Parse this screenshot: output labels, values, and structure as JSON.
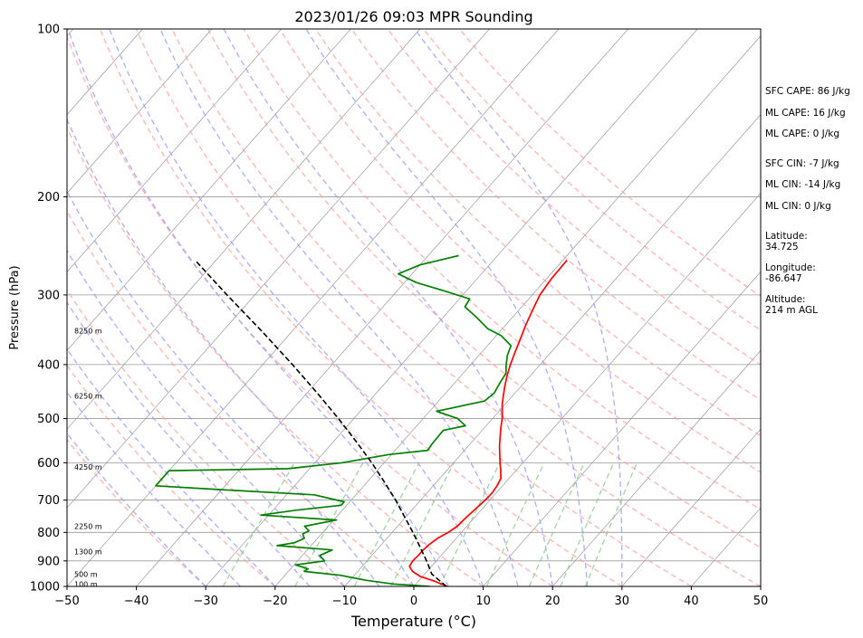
{
  "chart_data": {
    "type": "line",
    "title": "2023/01/26 09:03 MPR Sounding",
    "xlabel": "Temperature (°C)",
    "ylabel": "Pressure (hPa)",
    "xlim": [
      -50,
      50
    ],
    "ylim": [
      1000,
      100
    ],
    "y_scale": "log",
    "x_ticks": [
      -50,
      -40,
      -30,
      -20,
      -10,
      0,
      10,
      20,
      30,
      40,
      50
    ],
    "y_ticks": [
      100,
      200,
      300,
      400,
      500,
      600,
      700,
      800,
      900,
      1000
    ],
    "grid": true,
    "series": [
      {
        "role": "temperature",
        "color": "#ff0000",
        "points": [
          [
            1000,
            4.8
          ],
          [
            980,
            2.5
          ],
          [
            960,
            -0.3
          ],
          [
            940,
            -2.1
          ],
          [
            920,
            -3.2
          ],
          [
            900,
            -3.4
          ],
          [
            880,
            -3.3
          ],
          [
            860,
            -3.3
          ],
          [
            840,
            -3.1
          ],
          [
            820,
            -2.7
          ],
          [
            800,
            -1.9
          ],
          [
            780,
            -1.4
          ],
          [
            750,
            -1.2
          ],
          [
            720,
            -0.9
          ],
          [
            700,
            -0.7
          ],
          [
            680,
            -0.6
          ],
          [
            660,
            -0.8
          ],
          [
            640,
            -1.2
          ],
          [
            620,
            -2.2
          ],
          [
            600,
            -3.3
          ],
          [
            560,
            -5.5
          ],
          [
            520,
            -7.6
          ],
          [
            500,
            -8.6
          ],
          [
            470,
            -10.5
          ],
          [
            440,
            -12.2
          ],
          [
            420,
            -13.3
          ],
          [
            400,
            -14.3
          ],
          [
            380,
            -15.2
          ],
          [
            360,
            -16.1
          ],
          [
            340,
            -17.1
          ],
          [
            320,
            -18.0
          ],
          [
            300,
            -18.9
          ],
          [
            280,
            -19.3
          ],
          [
            260,
            -19.4
          ]
        ]
      },
      {
        "role": "dewpoint",
        "color": "#008000",
        "points": [
          [
            1000,
            2.3
          ],
          [
            990,
            -3.3
          ],
          [
            975,
            -7.7
          ],
          [
            955,
            -12.0
          ],
          [
            940,
            -17.7
          ],
          [
            930,
            -17.5
          ],
          [
            915,
            -19.8
          ],
          [
            900,
            -16.1
          ],
          [
            880,
            -17.5
          ],
          [
            860,
            -16.4
          ],
          [
            845,
            -24.9
          ],
          [
            835,
            -22.8
          ],
          [
            820,
            -21.9
          ],
          [
            805,
            -22.7
          ],
          [
            795,
            -22.2
          ],
          [
            780,
            -23.4
          ],
          [
            760,
            -19.6
          ],
          [
            745,
            -31.1
          ],
          [
            730,
            -26.7
          ],
          [
            715,
            -20.8
          ],
          [
            705,
            -20.8
          ],
          [
            685,
            -26.0
          ],
          [
            670,
            -40.6
          ],
          [
            660,
            -50.0
          ],
          [
            620,
            -50.0
          ],
          [
            615,
            -33.1
          ],
          [
            600,
            -26.0
          ],
          [
            580,
            -20.4
          ],
          [
            570,
            -15.3
          ],
          [
            555,
            -15.5
          ],
          [
            525,
            -15.6
          ],
          [
            515,
            -13.0
          ],
          [
            500,
            -15.0
          ],
          [
            485,
            -19.0
          ],
          [
            465,
            -13.4
          ],
          [
            450,
            -13.0
          ],
          [
            430,
            -13.5
          ],
          [
            415,
            -13.8
          ],
          [
            400,
            -14.9
          ],
          [
            385,
            -15.9
          ],
          [
            370,
            -16.6
          ],
          [
            355,
            -19.3
          ],
          [
            345,
            -22.1
          ],
          [
            330,
            -25.0
          ],
          [
            315,
            -28.2
          ],
          [
            305,
            -28.5
          ],
          [
            295,
            -33.2
          ],
          [
            285,
            -38.3
          ],
          [
            275,
            -42.0
          ],
          [
            265,
            -40.0
          ],
          [
            255,
            -35.6
          ]
        ]
      },
      {
        "role": "parcel",
        "color": "#000000",
        "style": "dashed",
        "points": [
          [
            1000,
            4.7
          ],
          [
            950,
            1.0
          ],
          [
            900,
            -1.4
          ],
          [
            850,
            -4.1
          ],
          [
            800,
            -7.0
          ],
          [
            750,
            -10.2
          ],
          [
            700,
            -13.6
          ],
          [
            650,
            -17.5
          ],
          [
            600,
            -21.8
          ],
          [
            550,
            -26.7
          ],
          [
            500,
            -32.2
          ],
          [
            450,
            -38.5
          ],
          [
            400,
            -45.7
          ],
          [
            350,
            -54.1
          ],
          [
            300,
            -64.0
          ],
          [
            260,
            -73.0
          ]
        ]
      }
    ],
    "dry_adiabats_C": [
      -30,
      -20,
      -10,
      0,
      10,
      20,
      30,
      40,
      50,
      60,
      70,
      80,
      90,
      100,
      110,
      120,
      130
    ],
    "moist_adiabats_C": [
      -30,
      -25,
      -20,
      -15,
      -10,
      -5,
      0,
      5,
      10,
      15,
      20,
      25,
      30
    ],
    "mixing_ratios_gkg": [
      0.4,
      1,
      2,
      3,
      5,
      8,
      12,
      16,
      20
    ],
    "height_labels": [
      {
        "p": 990,
        "text": "100 m"
      },
      {
        "p": 950,
        "text": "500 m"
      },
      {
        "p": 866,
        "text": "1300 m"
      },
      {
        "p": 780,
        "text": "2250 m"
      },
      {
        "p": 610,
        "text": "4250 m"
      },
      {
        "p": 455,
        "text": "6250 m"
      },
      {
        "p": 348,
        "text": "8250 m"
      }
    ],
    "annotations": [
      "SFC CAPE: 86 J/kg",
      "ML CAPE: 16 J/kg",
      "ML CAPE: 0 J/kg",
      "SFC CIN: -7 J/kg",
      "ML CIN: -14 J/kg",
      "ML CIN: 0 J/kg",
      "Latitude:\n34.725",
      "Longitude:\n-86.647",
      "Altitude:\n214 m AGL"
    ]
  },
  "colors": {
    "temperature": "#ff0000",
    "dewpoint": "#008000",
    "parcel": "#000000",
    "dry_adiabat": "#ff9999",
    "moist_adiabat": "#9999ff",
    "mixing_ratio": "#88cc88",
    "isotherm": "#999999",
    "isobar": "#999999"
  }
}
